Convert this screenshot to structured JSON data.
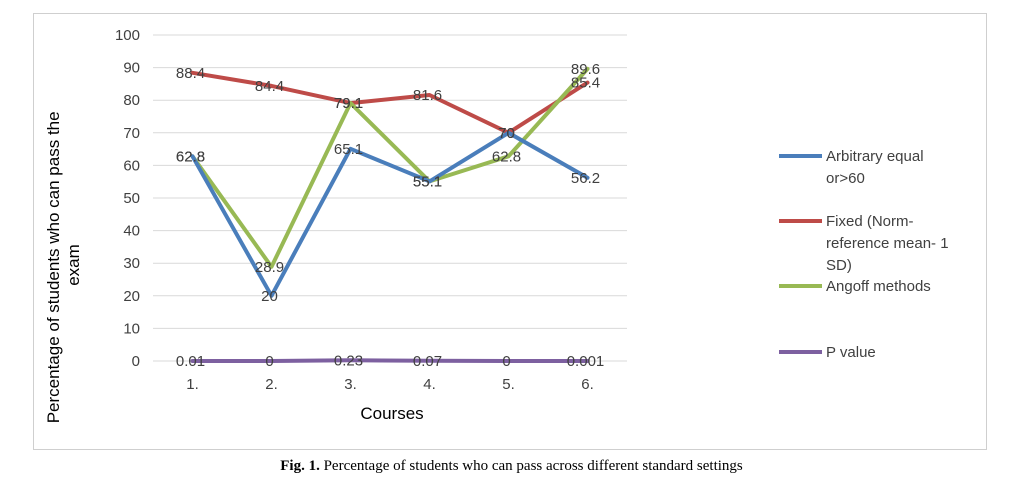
{
  "caption": {
    "label": "Fig. 1.",
    "text": "Percentage of students who can pass across different standard settings"
  },
  "chart_data": {
    "type": "line",
    "xlabel": "Courses",
    "ylabel": "Percentage of students who can pass the exam",
    "ylim": [
      0,
      100
    ],
    "yticks": [
      0,
      10,
      20,
      30,
      40,
      50,
      60,
      70,
      80,
      90,
      100
    ],
    "grid": true,
    "legend_position": "right",
    "categories": [
      "1.",
      "2.",
      "3.",
      "4.",
      "5.",
      "6."
    ],
    "series": [
      {
        "name": "Arbitrary equal or>60",
        "legend_lines": [
          "Arbitrary equal",
          "or>60"
        ],
        "color": "#4a7ebb",
        "values": [
          62.8,
          20,
          65.1,
          55.1,
          70,
          56.2
        ],
        "labels": [
          "62.8",
          "20",
          "65.1",
          "55.1",
          "70",
          "56.2"
        ]
      },
      {
        "name": "Fixed (Norm-reference mean- 1 SD)",
        "legend_lines": [
          "Fixed (Norm-",
          "reference mean- 1",
          "SD)"
        ],
        "color": "#be4b48",
        "values": [
          88.4,
          84.4,
          79.1,
          81.6,
          70,
          85.4
        ],
        "labels": [
          "88.4",
          "84.4",
          "79.1",
          "81.6",
          "70",
          "85.4"
        ]
      },
      {
        "name": "Angoff methods",
        "legend_lines": [
          "Angoff methods"
        ],
        "color": "#98b954",
        "values": [
          62.8,
          28.9,
          79.1,
          55.1,
          62.8,
          89.6
        ],
        "labels": [
          "62.8",
          "28.9",
          "79.1",
          "55.1",
          "62.8",
          "89.6"
        ]
      },
      {
        "name": "P value",
        "legend_lines": [
          "P value"
        ],
        "color": "#7d60a0",
        "values": [
          0.01,
          0,
          0.23,
          0.07,
          0,
          0.001
        ],
        "labels": [
          "0.01",
          "0",
          "0.23",
          "0.07",
          "0",
          "0.001"
        ]
      }
    ]
  }
}
